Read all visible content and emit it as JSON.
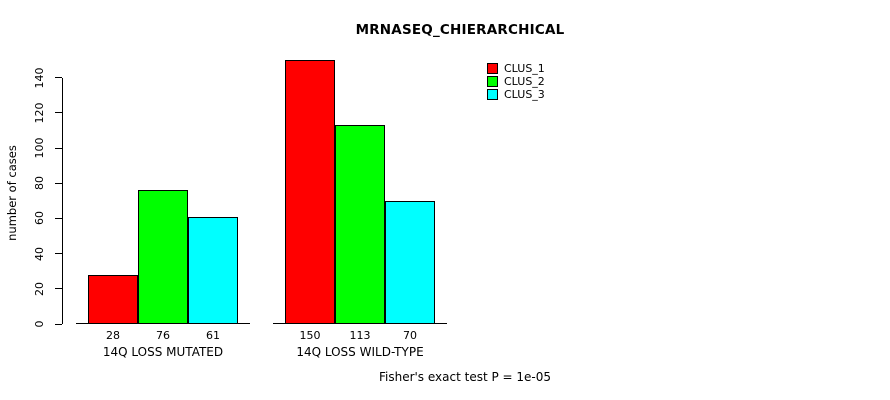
{
  "chart_data": {
    "type": "bar",
    "title": "MRNASEQ_CHIERARCHICAL",
    "ylabel": "number of cases",
    "xlabel": "",
    "ylim": [
      0,
      150
    ],
    "yticks": [
      0,
      20,
      40,
      60,
      80,
      100,
      120,
      140
    ],
    "categories": [
      "14Q LOSS MUTATED",
      "14Q LOSS WILD-TYPE"
    ],
    "series": [
      {
        "name": "CLUS_1",
        "color": "#FF0000",
        "values": [
          28,
          150
        ]
      },
      {
        "name": "CLUS_2",
        "color": "#00FF00",
        "values": [
          76,
          113
        ]
      },
      {
        "name": "CLUS_3",
        "color": "#00FFFF",
        "values": [
          61,
          70
        ]
      }
    ],
    "bar_value_labels_shown": true,
    "legend_position": "top-right",
    "grid": false,
    "footnote": "Fisher's exact test P = 1e-05"
  }
}
